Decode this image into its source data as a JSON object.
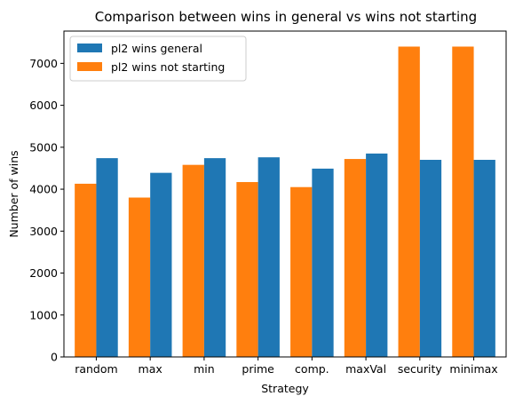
{
  "chart_data": {
    "type": "bar",
    "title": "Comparison between wins in general vs wins not starting",
    "xlabel": "Strategy",
    "ylabel": "Number of wins",
    "categories": [
      "random",
      "max",
      "min",
      "prime",
      "comp.",
      "maxVal",
      "security",
      "minimax"
    ],
    "series": [
      {
        "name": "pl2 wins not starting",
        "color": "#ff7f0e",
        "values": [
          4130,
          3800,
          4580,
          4170,
          4050,
          4720,
          7400,
          7400
        ]
      },
      {
        "name": "pl2 wins general",
        "color": "#1f77b4",
        "values": [
          4740,
          4390,
          4740,
          4760,
          4490,
          4850,
          4700,
          4700
        ]
      }
    ],
    "legend_order": [
      1,
      0
    ],
    "yticks": [
      0,
      1000,
      2000,
      3000,
      4000,
      5000,
      6000,
      7000
    ],
    "ylim": [
      0,
      7770
    ],
    "grid": false,
    "legend_position": "top-left"
  }
}
